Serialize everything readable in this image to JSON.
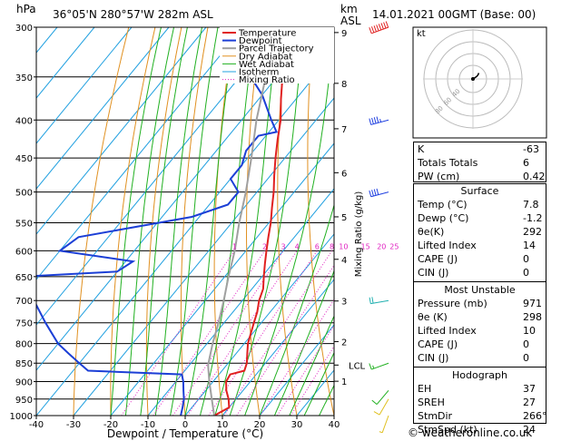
{
  "header": {
    "station": "36°05'N  280°57'W  282m  ASL",
    "hpa_unit": "hPa",
    "km_unit": "km",
    "asl_unit": "ASL",
    "datetime": "14.01.2021  00GMT  (Base: 00)"
  },
  "colors": {
    "temperature": "#e02020",
    "dewpoint": "#1c3fd6",
    "parcel": "#a0a0a0",
    "dry_adiabat": "#e09020",
    "wet_adiabat": "#20b020",
    "isotherm": "#20a0e0",
    "mixing_ratio": "#e020c0"
  },
  "chart_data": {
    "type": "line",
    "title": "Skew-T log-P sounding",
    "xlabel": "Dewpoint / Temperature (°C)",
    "ylabel": "hPa",
    "right_axis_label": "Mixing Ratio (g/kg)",
    "xlim": [
      -40,
      40
    ],
    "ylim": [
      1000,
      300
    ],
    "x_ticks": [
      -40,
      -30,
      -20,
      -10,
      0,
      10,
      20,
      30,
      40
    ],
    "x_tick_labels": [
      "-40",
      "-30",
      "-20",
      "-10",
      "0",
      "10",
      "20",
      "30",
      "40"
    ],
    "pressure_levels": [
      300,
      350,
      400,
      450,
      500,
      550,
      600,
      650,
      700,
      750,
      800,
      850,
      900,
      950,
      1000
    ],
    "pressure_labels": [
      "300",
      "350",
      "400",
      "450",
      "500",
      "550",
      "600",
      "650",
      "700",
      "750",
      "800",
      "850",
      "900",
      "950",
      "1000"
    ],
    "km_ticks": [
      {
        "label": "9",
        "p": 305
      },
      {
        "label": "8",
        "p": 357
      },
      {
        "label": "7",
        "p": 411
      },
      {
        "label": "6",
        "p": 471
      },
      {
        "label": "5",
        "p": 540
      },
      {
        "label": "4",
        "p": 616
      },
      {
        "label": "3",
        "p": 701
      },
      {
        "label": "2",
        "p": 795
      },
      {
        "label": "1",
        "p": 899
      }
    ],
    "lcl_label": "LCL",
    "lcl_pressure": 855,
    "mixing_ratio_values": [
      1,
      2,
      3,
      4,
      6,
      8,
      10,
      15,
      20,
      25
    ],
    "mixing_ratio_labels": [
      "1",
      "2",
      "3",
      "4",
      "6",
      "8",
      "10",
      "15",
      "20",
      "25"
    ],
    "series": [
      {
        "name": "Temperature",
        "p": [
          1000,
          975,
          950,
          925,
          900,
          880,
          870,
          850,
          825,
          800,
          775,
          750,
          725,
          700,
          675,
          650,
          625,
          600,
          575,
          550,
          525,
          500,
          475,
          450,
          425,
          400,
          375,
          350,
          325,
          300
        ],
        "t": [
          7.8,
          10.0,
          8.0,
          5.5,
          3.5,
          3.0,
          6.0,
          5.0,
          3.0,
          1.0,
          -0.5,
          -2.0,
          -3.5,
          -5.5,
          -7.0,
          -9.5,
          -12.0,
          -14.5,
          -17.0,
          -19.5,
          -22.5,
          -25.5,
          -29.0,
          -32.5,
          -36.0,
          -39.5,
          -44.0,
          -48.5,
          -53.5,
          -58.0
        ]
      },
      {
        "name": "Dewpoint",
        "p": [
          1000,
          975,
          950,
          925,
          900,
          880,
          870,
          850,
          825,
          800,
          750,
          700,
          650,
          640,
          620,
          600,
          575,
          540,
          520,
          500,
          480,
          460,
          440,
          420,
          415,
          400,
          370,
          350,
          330,
          310,
          300
        ],
        "t": [
          -1.2,
          -2.5,
          -4.0,
          -6.0,
          -8.0,
          -10.0,
          -36.0,
          -40.0,
          -45.0,
          -50.0,
          -58.0,
          -66.0,
          -75.0,
          -50.0,
          -48.0,
          -70.0,
          -68.0,
          -42.0,
          -35.0,
          -35.0,
          -40.0,
          -40.0,
          -42.0,
          -42.0,
          -38.0,
          -42.0,
          -50.0,
          -57.0,
          -62.0,
          -67.0,
          -72.0
        ]
      },
      {
        "name": "Parcel Trajectory",
        "p": [
          1000,
          950,
          900,
          855,
          800,
          750,
          700,
          650,
          600,
          550,
          500,
          450,
          400,
          350,
          300
        ],
        "t": [
          7.8,
          3.5,
          -1.0,
          -5.0,
          -8.5,
          -11.5,
          -15.0,
          -19.0,
          -23.0,
          -28.0,
          -33.0,
          -39.0,
          -46.0,
          -53.0,
          -61.0
        ]
      }
    ],
    "legend": [
      "Temperature",
      "Dewpoint",
      "Parcel Trajectory",
      "Dry Adiabat",
      "Wet Adiabat",
      "Isotherm",
      "Mixing Ratio"
    ],
    "wind_barbs": [
      {
        "p": 300,
        "dir": 250,
        "kt": 90
      },
      {
        "p": 400,
        "dir": 255,
        "kt": 45
      },
      {
        "p": 500,
        "dir": 255,
        "kt": 40
      },
      {
        "p": 700,
        "dir": 260,
        "kt": 20
      },
      {
        "p": 850,
        "dir": 250,
        "kt": 15
      },
      {
        "p": 925,
        "dir": 220,
        "kt": 10
      },
      {
        "p": 950,
        "dir": 210,
        "kt": 10
      },
      {
        "p": 1000,
        "dir": 200,
        "kt": 5
      }
    ]
  },
  "hodograph": {
    "unit_label": "kt",
    "ring_labels": [
      "20",
      "40",
      "60",
      "80",
      "100",
      "120"
    ],
    "u": [
      0,
      1.5,
      3,
      4,
      5
    ],
    "v": [
      0,
      1,
      2,
      3,
      5
    ]
  },
  "indices": {
    "rows": [
      {
        "label": "K",
        "value": "-63"
      },
      {
        "label": "Totals Totals",
        "value": "6"
      },
      {
        "label": "PW (cm)",
        "value": "0.42"
      }
    ]
  },
  "surface": {
    "title": "Surface",
    "rows": [
      {
        "label": "Temp (°C)",
        "value": "7.8"
      },
      {
        "label": "Dewp (°C)",
        "value": "-1.2"
      },
      {
        "label": "θe(K)",
        "value": "292"
      },
      {
        "label": "Lifted Index",
        "value": "14"
      },
      {
        "label": "CAPE (J)",
        "value": "0"
      },
      {
        "label": "CIN (J)",
        "value": "0"
      }
    ]
  },
  "most_unstable": {
    "title": "Most Unstable",
    "rows": [
      {
        "label": "Pressure (mb)",
        "value": "971"
      },
      {
        "label": "θe (K)",
        "value": "298"
      },
      {
        "label": "Lifted Index",
        "value": "10"
      },
      {
        "label": "CAPE (J)",
        "value": "0"
      },
      {
        "label": "CIN (J)",
        "value": "0"
      }
    ]
  },
  "hodograph_stats": {
    "title": "Hodograph",
    "rows": [
      {
        "label": "EH",
        "value": "37"
      },
      {
        "label": "SREH",
        "value": "27"
      },
      {
        "label": "StmDir",
        "value": "266°"
      },
      {
        "label": "StmSpd (kt)",
        "value": "24"
      }
    ]
  },
  "footer": {
    "credit": "© weatheronline.co.uk"
  }
}
